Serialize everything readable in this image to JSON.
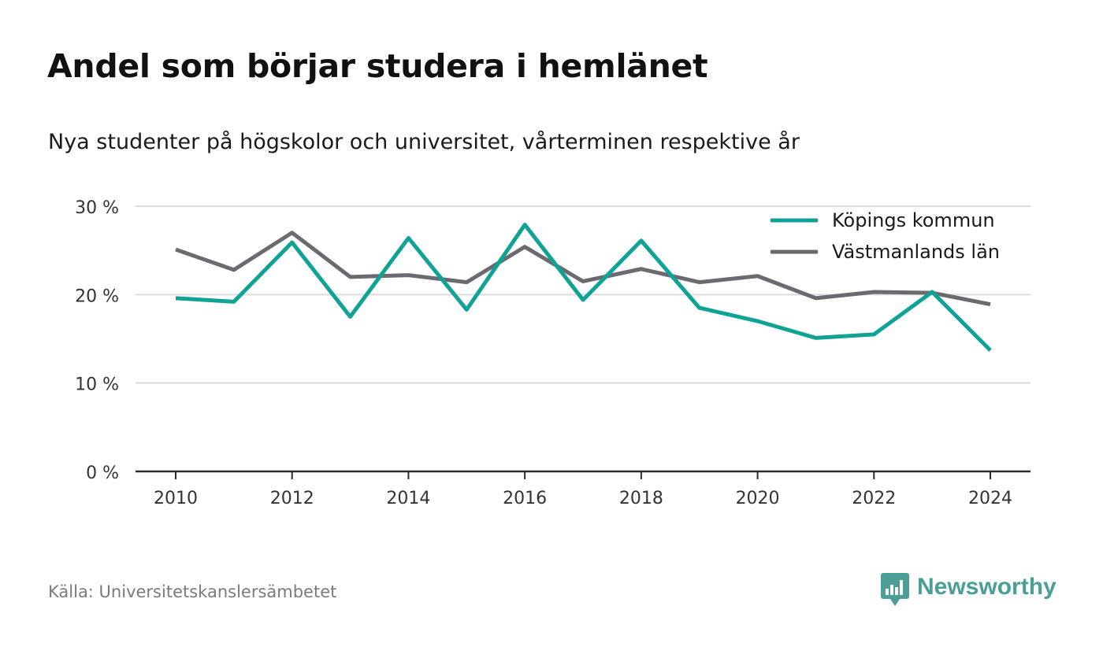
{
  "title": "Andel som börjar studera i hemlänet",
  "subtitle": "Nya studenter på högskolor och universitet, vårterminen respektive år",
  "source": "Källa: Universitetskanslersämbetet",
  "brand": {
    "name": "Newsworthy",
    "icon": "newsworthy-logo-icon",
    "color": "#4a9e96"
  },
  "chart_data": {
    "type": "line",
    "x": [
      2010,
      2011,
      2012,
      2013,
      2014,
      2015,
      2016,
      2017,
      2018,
      2019,
      2020,
      2021,
      2022,
      2023,
      2024
    ],
    "x_ticks": [
      2010,
      2012,
      2014,
      2016,
      2018,
      2020,
      2022,
      2024
    ],
    "y_ticks": [
      0,
      10,
      20,
      30
    ],
    "y_tick_labels": [
      "0 %",
      "10 %",
      "20 %",
      "30 %"
    ],
    "ylim": [
      0,
      30
    ],
    "xlabel": "",
    "ylabel": "",
    "grid": true,
    "legend_position": "top-right",
    "series": [
      {
        "name": "Köpings kommun",
        "color": "#0fa396",
        "values": [
          19.6,
          19.2,
          25.9,
          17.5,
          26.4,
          18.3,
          27.9,
          19.4,
          26.1,
          18.5,
          17.0,
          15.1,
          15.5,
          20.3,
          13.7
        ]
      },
      {
        "name": "Västmanlands län",
        "color": "#6c6a70",
        "values": [
          25.1,
          22.8,
          27.0,
          22.0,
          22.2,
          21.4,
          25.4,
          21.5,
          22.9,
          21.4,
          22.1,
          19.6,
          20.3,
          20.2,
          18.9
        ]
      }
    ]
  }
}
